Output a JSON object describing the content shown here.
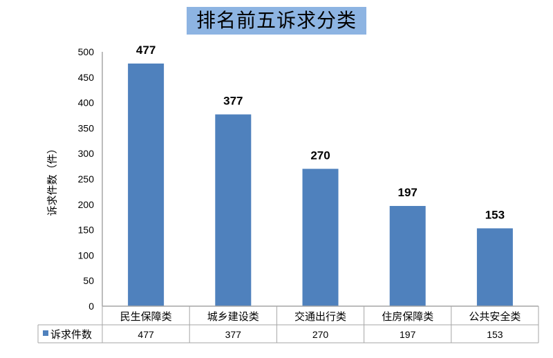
{
  "chart_data": {
    "type": "bar",
    "title": "排名前五诉求分类",
    "ylabel": "诉求件数（件）",
    "xlabel": "",
    "categories": [
      "民生保障类",
      "城乡建设类",
      "交通出行类",
      "住房保障类",
      "公共安全类"
    ],
    "series": [
      {
        "name": "诉求件数",
        "values": [
          477,
          377,
          270,
          197,
          153
        ],
        "color": "#4F81BD"
      }
    ],
    "ylim": [
      0,
      500
    ],
    "yticks": [
      0,
      50,
      100,
      150,
      200,
      250,
      300,
      350,
      400,
      450,
      500
    ],
    "grid": false,
    "data_labels": true,
    "data_table": true,
    "title_background": "#8DB4E2"
  }
}
